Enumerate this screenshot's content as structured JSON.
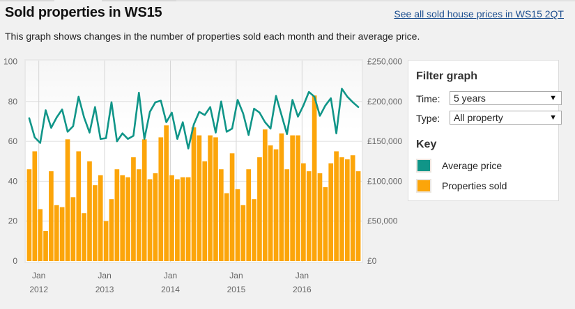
{
  "header": {
    "title": "Sold properties in WS15",
    "see_all_link": "See all sold house prices in WS15 2QT",
    "description": "This graph shows changes in the number of properties sold each month and their average price."
  },
  "filter": {
    "heading": "Filter graph",
    "time_label": "Time:",
    "time_value": "5 years",
    "type_label": "Type:",
    "type_value": "All property",
    "dropdown_icon": "triangle-down"
  },
  "key": {
    "heading": "Key",
    "items": [
      {
        "label": "Average price",
        "color": "#109588"
      },
      {
        "label": "Properties sold",
        "color": "#fca50a"
      }
    ]
  },
  "chart_data": {
    "type": "bar",
    "title": "",
    "xlabel": "",
    "ylabel": "Properties sold",
    "y2label": "Average price",
    "grid": true,
    "legend": "right",
    "ylim": [
      0,
      100
    ],
    "y2lim": [
      0,
      250000
    ],
    "yticks": [
      "0",
      "20",
      "40",
      "60",
      "80",
      "100"
    ],
    "y2ticks": [
      "£0",
      "£50,000",
      "£100,000",
      "£150,000",
      "£200,000",
      "£250,000"
    ],
    "xticks": [
      {
        "month": "Jan",
        "year": "2012",
        "index": 2
      },
      {
        "month": "Jan",
        "year": "2013",
        "index": 14
      },
      {
        "month": "Jan",
        "year": "2014",
        "index": 26
      },
      {
        "month": "Jan",
        "year": "2015",
        "index": 38
      },
      {
        "month": "Jan",
        "year": "2016",
        "index": 50
      }
    ],
    "x_start": "Nov 2011",
    "x_end": "Nov 2016",
    "series": [
      {
        "name": "Properties sold",
        "type": "bar",
        "axis": "left",
        "color": "#fca50a",
        "values": [
          46,
          55,
          26,
          15,
          45,
          28,
          27,
          61,
          32,
          55,
          24,
          50,
          38,
          43,
          20,
          31,
          46,
          43,
          42,
          52,
          46,
          61,
          41,
          44,
          62,
          68,
          43,
          41,
          42,
          42,
          67,
          63,
          50,
          63,
          62,
          46,
          34,
          54,
          36,
          28,
          46,
          31,
          52,
          66,
          58,
          56,
          64,
          46,
          63,
          63,
          49,
          45,
          83,
          44,
          37,
          49,
          55,
          52,
          51,
          53,
          45
        ]
      },
      {
        "name": "Average price",
        "type": "line",
        "axis": "right",
        "color": "#109588",
        "values": [
          179000,
          155000,
          148000,
          189000,
          167000,
          180000,
          190000,
          162000,
          169000,
          206000,
          180000,
          161000,
          193000,
          153000,
          154000,
          199000,
          150000,
          160000,
          153000,
          157000,
          211000,
          153000,
          187000,
          199000,
          201000,
          174000,
          186000,
          153000,
          174000,
          141000,
          171000,
          187000,
          183000,
          193000,
          161000,
          200000,
          162000,
          166000,
          202000,
          185000,
          158000,
          191000,
          186000,
          174000,
          166000,
          207000,
          183000,
          159000,
          202000,
          181000,
          195000,
          212000,
          206000,
          182000,
          195000,
          204000,
          160000,
          216000,
          206000,
          199000,
          193000
        ]
      }
    ]
  }
}
